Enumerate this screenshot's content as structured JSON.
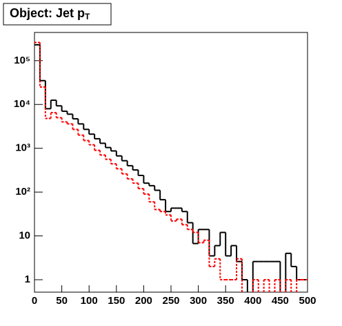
{
  "chart_data": {
    "type": "histogram",
    "title": "Object: Jet p",
    "title_subscript": "T",
    "bins": [
      0,
      10,
      20,
      30,
      40,
      50,
      60,
      70,
      80,
      90,
      100,
      110,
      120,
      130,
      140,
      150,
      160,
      170,
      180,
      190,
      200,
      210,
      220,
      230,
      240,
      250,
      260,
      270,
      280,
      290,
      300,
      310,
      320,
      330,
      340,
      350,
      360,
      370,
      380,
      390,
      400,
      410,
      420,
      430,
      440,
      450,
      460,
      470,
      480,
      490,
      500
    ],
    "series": [
      {
        "color": "#000000",
        "dash": false,
        "values": [
          230000,
          35000,
          8000,
          12500,
          9300,
          7000,
          6000,
          4700,
          3600,
          2700,
          2100,
          1650,
          1300,
          1040,
          870,
          670,
          520,
          400,
          320,
          240,
          160,
          140,
          110,
          67,
          36,
          43,
          43,
          36,
          20,
          6.7,
          14,
          14,
          3.5,
          6,
          12,
          3.5,
          6,
          2.6,
          1,
          0,
          2.6,
          2.6,
          2.6,
          2.6,
          2.6,
          0,
          4,
          2,
          1,
          1
        ]
      },
      {
        "color": "#ff0000",
        "dash": true,
        "values": [
          260000,
          25000,
          4800,
          6500,
          5000,
          4000,
          3600,
          2700,
          2000,
          1500,
          1200,
          900,
          700,
          560,
          440,
          340,
          260,
          200,
          160,
          120,
          90,
          60,
          40,
          36,
          30,
          22,
          24,
          18,
          14,
          12,
          7,
          8,
          2,
          3,
          1,
          1,
          1,
          3,
          0,
          0,
          1,
          0,
          1,
          0,
          1,
          0,
          1,
          0,
          1,
          1
        ]
      }
    ],
    "xlim": [
      0,
      500
    ],
    "xticks": [
      0,
      50,
      100,
      150,
      200,
      250,
      300,
      350,
      400,
      450,
      500
    ],
    "ylim": [
      0.52,
      440000
    ],
    "log_y": true,
    "yticks": [
      1,
      10,
      {
        "value": 100,
        "label": "10²"
      },
      {
        "value": 1000,
        "label": "10³"
      },
      {
        "value": 10000,
        "label": "10⁴"
      },
      {
        "value": 100000,
        "label": "10⁵"
      }
    ]
  }
}
